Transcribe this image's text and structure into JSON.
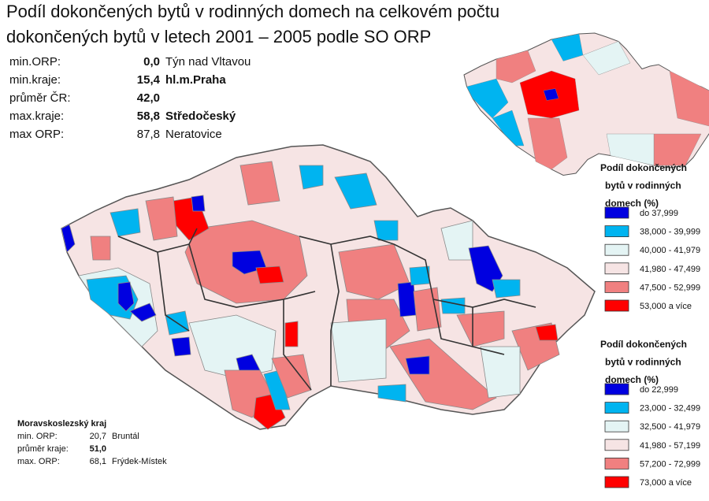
{
  "header": {
    "title": [
      "Podíl dokončených bytů v rodinných domech na celkovém počtu",
      "dokončených bytů v letech 2001 – 2005 podle SO ORP"
    ]
  },
  "stats": {
    "rows": [
      [
        "min.ORP:",
        "0,0",
        "Týn nad Vltavou"
      ],
      [
        "min.kraje:",
        "15,4",
        "hl.m.Praha"
      ],
      [
        "průměr ČR:",
        "42,0"
      ],
      [
        "max.kraje:",
        "58,8",
        "Středočeský"
      ],
      [
        "max ORP:",
        "87,8",
        "Neratovice"
      ]
    ]
  },
  "legend_kraje": {
    "title": [
      "Podíl dokončených",
      "bytů v rodinných",
      "domech (%)"
    ],
    "items": [
      {
        "label": "do 37,999",
        "color": "#0000e0"
      },
      {
        "label": "38,000 - 39,999",
        "color": "#00b4f0"
      },
      {
        "label": "40,000 - 41,979",
        "color": "#e4f4f4"
      },
      {
        "label": "41,980 - 47,499",
        "color": "#f6e4e4"
      },
      {
        "label": "47,500 - 52,999",
        "color": "#f08080"
      },
      {
        "label": "53,000 a více",
        "color": "#ff0000"
      }
    ]
  },
  "legend_orp": {
    "title": [
      "Podíl dokončených",
      "bytů v rodinných",
      "domech (%)"
    ],
    "items": [
      {
        "label": "do 22,999",
        "color": "#0000e0"
      },
      {
        "label": "23,000 - 32,499",
        "color": "#00b4f0"
      },
      {
        "label": "32,500 - 41,979",
        "color": "#e4f4f4"
      },
      {
        "label": "41,980 - 57,199",
        "color": "#f6e4e4"
      },
      {
        "label": "57,200 - 72,999",
        "color": "#f08080"
      },
      {
        "label": "73,000 a více",
        "color": "#ff0000"
      }
    ]
  },
  "region_note": {
    "title": "Moravskoslezský kraj",
    "rows": [
      [
        "min. ORP:",
        "20,7",
        "Bruntál"
      ],
      [
        "průměr kraje:",
        "51,0"
      ],
      [
        "max. ORP:",
        "68,1",
        "Frýdek-Místek"
      ]
    ]
  }
}
